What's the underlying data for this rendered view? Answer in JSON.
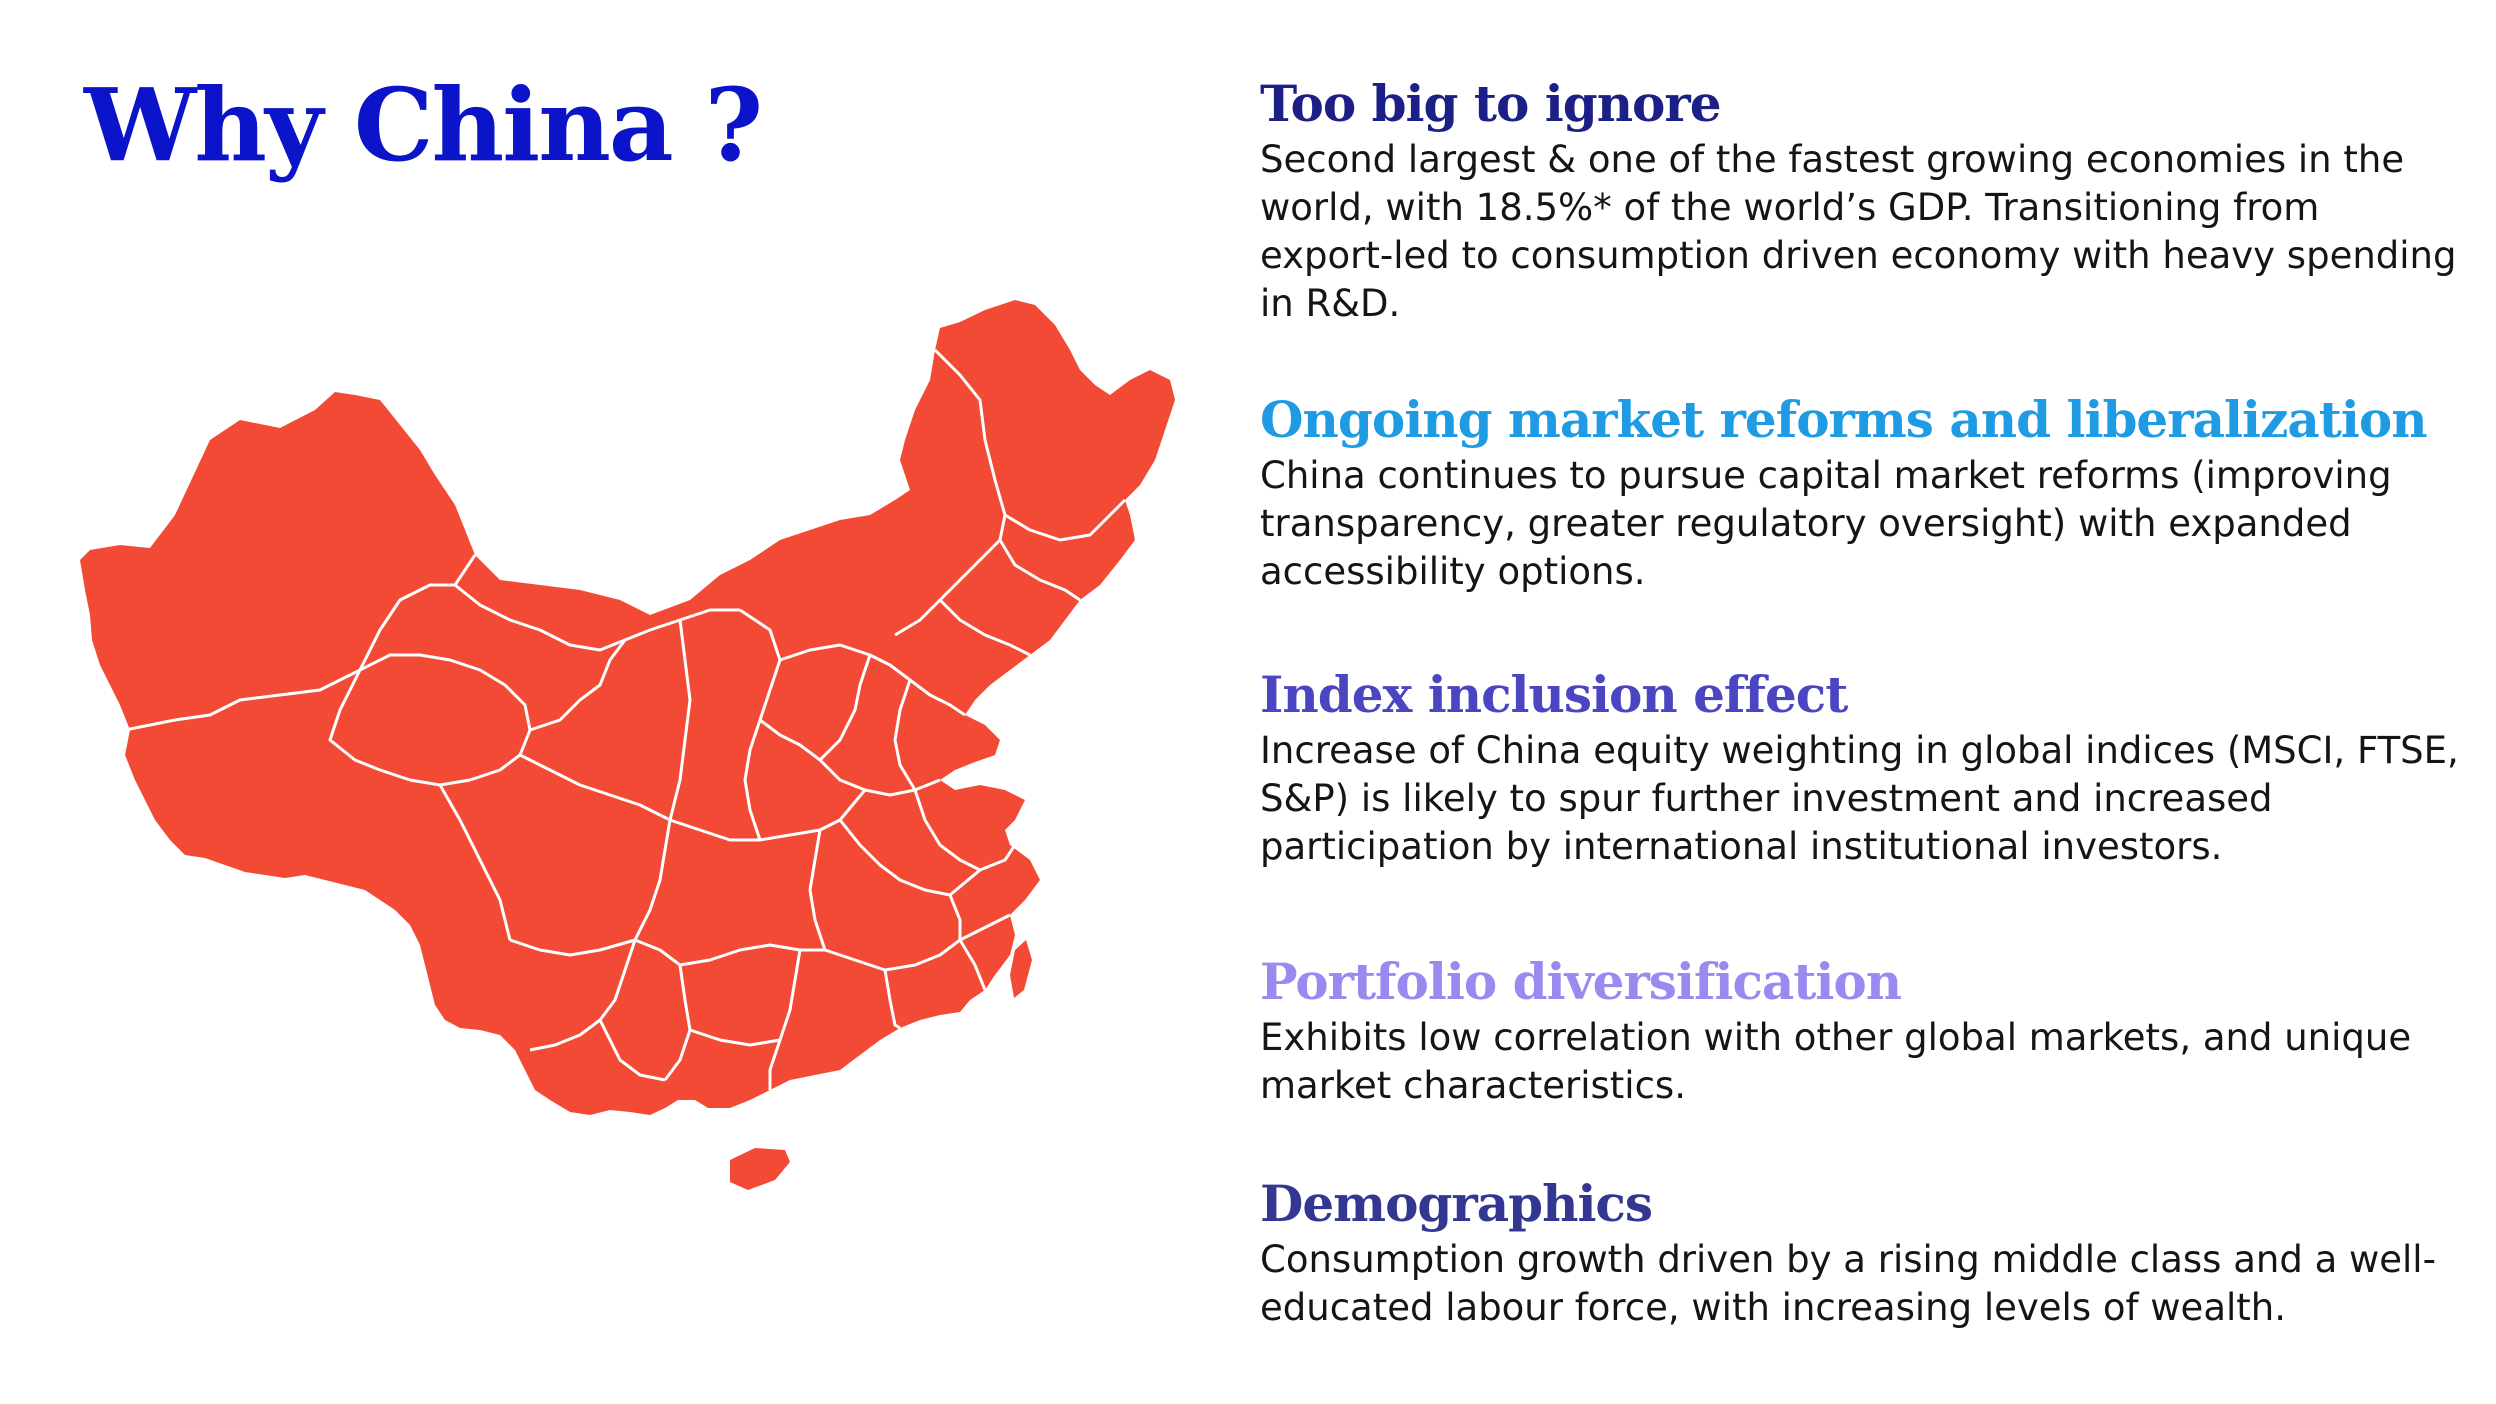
{
  "title": {
    "text": "Why China ?",
    "color": "#0b14c9"
  },
  "map": {
    "icon": "china-map-icon",
    "fill_color": "#f24a35",
    "border_color": "#ffffff"
  },
  "sections": [
    {
      "heading": "Too big to ignore",
      "color": "#1c1f86",
      "body": "Second largest & one of the fastest growing economies in the world, with 18.5%* of the world’s GDP. Transitioning from export-led to consumption driven economy with heavy spending in R&D."
    },
    {
      "heading": "Ongoing market reforms and liberalization",
      "color": "#1f9be3",
      "body": "China continues to pursue capital market reforms (improving transparency, greater regulatory oversight) with expanded accessibility options."
    },
    {
      "heading": "Index inclusion effect",
      "color": "#4b45c2",
      "body": "Increase of China equity weighting in global indices (MSCI, FTSE, S&P) is likely to spur further investment and increased participation by international institutional investors."
    },
    {
      "heading": "Portfolio diversification",
      "color": "#9a89ef",
      "body": "Exhibits low correlation with other global markets, and unique market characteristics."
    },
    {
      "heading": "Demographics",
      "color": "#343791",
      "body": "Consumption growth driven by a rising middle class and a well-educated labour force, with increasing levels of wealth."
    }
  ]
}
